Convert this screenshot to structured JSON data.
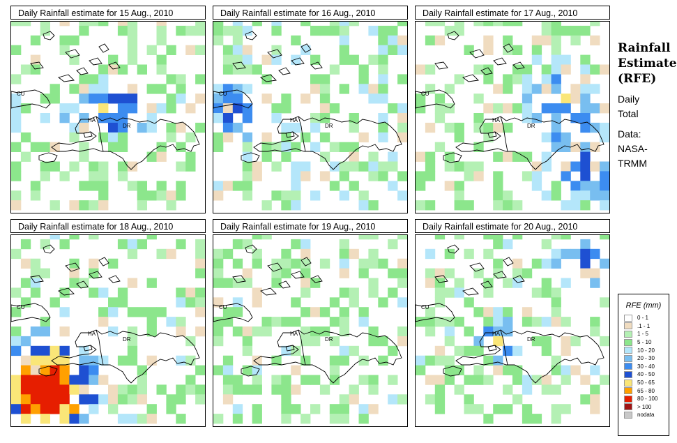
{
  "panels": [
    {
      "title": "Daily Rainfall estimate for  15 Aug., 2010",
      "seed": 15,
      "profile": "central"
    },
    {
      "title": "Daily Rainfall estimate for  16 Aug., 2010",
      "seed": 16,
      "profile": "west"
    },
    {
      "title": "Daily Rainfall estimate for  17 Aug., 2010",
      "seed": 17,
      "profile": "east"
    },
    {
      "title": "Daily Rainfall estimate for  18 Aug., 2010",
      "seed": 18,
      "profile": "southwest"
    },
    {
      "title": "Daily Rainfall estimate for  19 Aug., 2010",
      "seed": 19,
      "profile": "dry"
    },
    {
      "title": "Daily Rainfall estimate for  20 Aug., 2010",
      "seed": 20,
      "profile": "haiti"
    }
  ],
  "country_labels": {
    "cuba": "CU",
    "haiti": "HA",
    "dominican_republic": "DR"
  },
  "side": {
    "title_lines": [
      "Rainfall",
      "Estimate",
      "(RFE)"
    ],
    "daily": [
      "Daily",
      "Total"
    ],
    "data": [
      "Data:",
      "NASA-",
      "TRMM"
    ]
  },
  "legend": {
    "title": "RFE (mm)",
    "items": [
      {
        "label": "0 - 1",
        "color": "#ffffff"
      },
      {
        "label": ".1 - 1",
        "color": "#f0dcc0"
      },
      {
        "label": "1 - 5",
        "color": "#b4f0b4"
      },
      {
        "label": "5 - 10",
        "color": "#8ce68c"
      },
      {
        "label": "10 - 20",
        "color": "#b4e6fa"
      },
      {
        "label": "20 - 30",
        "color": "#78bef0"
      },
      {
        "label": "30 - 40",
        "color": "#3c8cf0"
      },
      {
        "label": "40 - 50",
        "color": "#1e50d2"
      },
      {
        "label": "50 - 65",
        "color": "#fae678"
      },
      {
        "label": "65 - 80",
        "color": "#ffa000"
      },
      {
        "label": "80 - 100",
        "color": "#e61e00"
      },
      {
        "label": "> 100",
        "color": "#a01414"
      },
      {
        "label": "nodata",
        "color": "#c8c8c8"
      }
    ]
  }
}
